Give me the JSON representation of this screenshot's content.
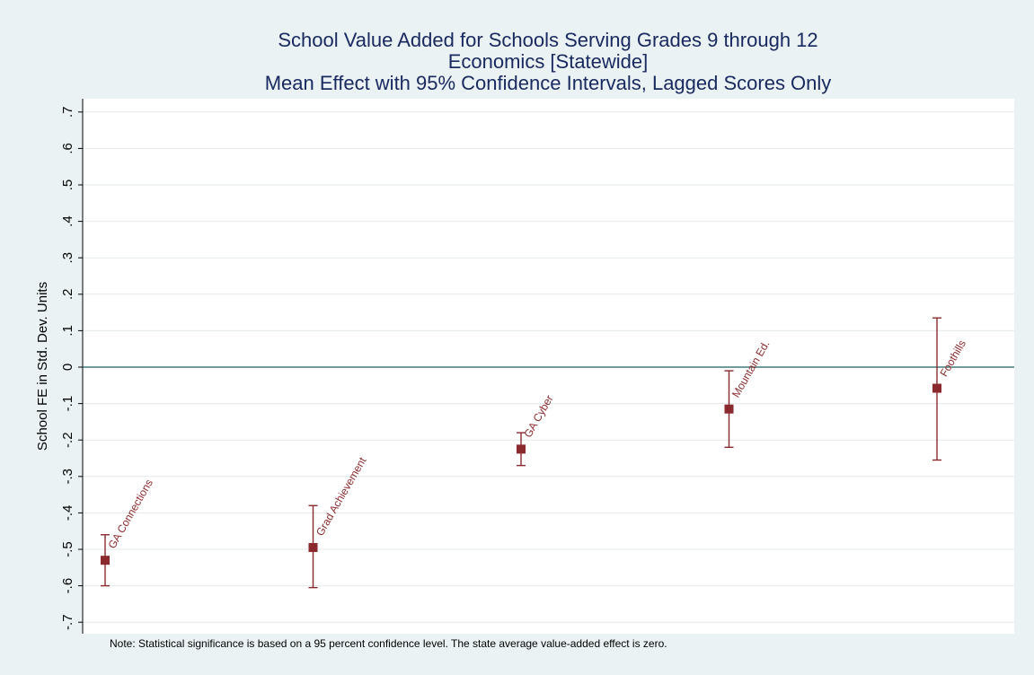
{
  "chart_data": {
    "type": "scatter",
    "title_lines": [
      "School Value Added for Schools Serving Grades 9 through 12",
      "Economics [Statewide]",
      "Mean Effect with 95% Confidence Intervals, Lagged Scores Only"
    ],
    "ylabel": "School FE in Std. Dev. Units",
    "xlabel": "",
    "ylim": [
      -0.73,
      0.73
    ],
    "y_ticks": [
      -0.7,
      -0.6,
      -0.5,
      -0.4,
      -0.3,
      -0.2,
      -0.1,
      0,
      0.1,
      0.2,
      0.3,
      0.4,
      0.5,
      0.6,
      0.7
    ],
    "y_tick_labels": [
      "-.7",
      "-.6",
      "-.5",
      "-.4",
      "-.3",
      "-.2",
      "-.1",
      "0",
      ".1",
      ".2",
      ".3",
      ".4",
      ".5",
      ".6",
      ".7"
    ],
    "grid": true,
    "reference_line": 0,
    "points": [
      {
        "label": "GA Connections",
        "x": 1,
        "mean": -0.53,
        "lower": -0.6,
        "upper": -0.46
      },
      {
        "label": "Grad Achievement",
        "x": 2,
        "mean": -0.495,
        "lower": -0.605,
        "upper": -0.38
      },
      {
        "label": "GA Cyber",
        "x": 3,
        "mean": -0.225,
        "lower": -0.27,
        "upper": -0.18
      },
      {
        "label": "Mountain Ed.",
        "x": 4,
        "mean": -0.115,
        "lower": -0.22,
        "upper": -0.01
      },
      {
        "label": "Foothills",
        "x": 5,
        "mean": -0.058,
        "lower": -0.255,
        "upper": 0.135
      }
    ],
    "colors": {
      "marker": "#8b2a2e",
      "reference_line": "#1f5f5f",
      "grid": "#e3e9ea",
      "title": "#1a2a60"
    },
    "note": "Note: Statistical significance is based on a 95 percent confidence level. The state average value-added effect is zero."
  }
}
